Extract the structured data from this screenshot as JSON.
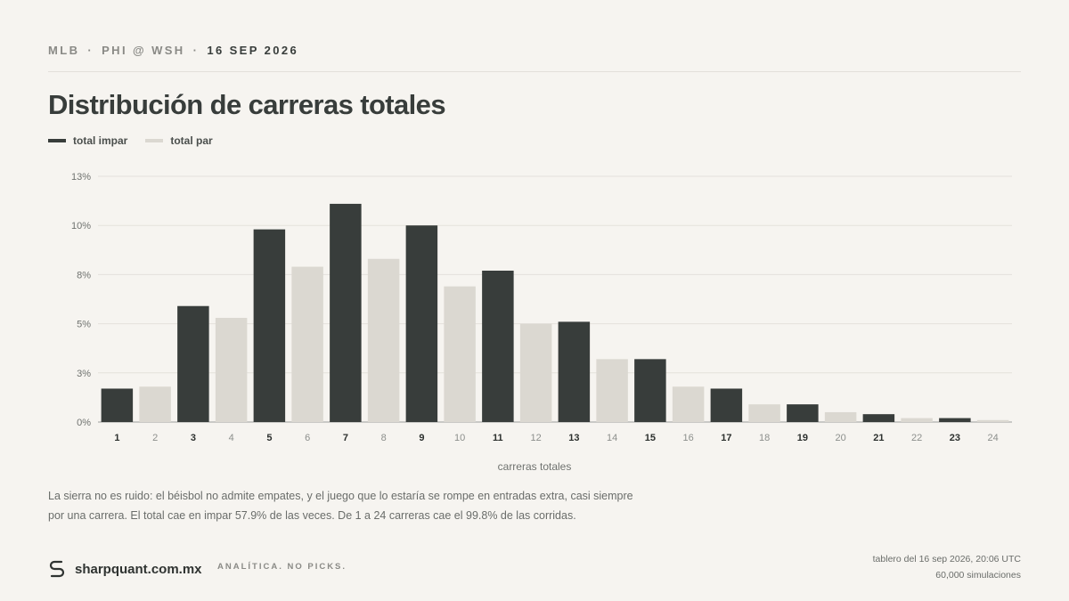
{
  "header": {
    "league": "MLB",
    "matchup": "PHI @ WSH",
    "date": "16 SEP 2026",
    "separator": "·",
    "title": "Distribución de carreras totales"
  },
  "legend": [
    {
      "label": "total impar",
      "color": "#383d3b"
    },
    {
      "label": "total par",
      "color": "#dbd8d1"
    }
  ],
  "chart_data": {
    "type": "bar",
    "xlabel": "carreras totales",
    "ylabel": "",
    "ylim": [
      0,
      12.5
    ],
    "yticks": [
      {
        "value": 0,
        "label": "0%"
      },
      {
        "value": 2.5,
        "label": "3%"
      },
      {
        "value": 5,
        "label": "5%"
      },
      {
        "value": 7.5,
        "label": "8%"
      },
      {
        "value": 10,
        "label": "10%"
      },
      {
        "value": 12.5,
        "label": "13%"
      }
    ],
    "categories": [
      "1",
      "2",
      "3",
      "4",
      "5",
      "6",
      "7",
      "8",
      "9",
      "10",
      "11",
      "12",
      "13",
      "14",
      "15",
      "16",
      "17",
      "18",
      "19",
      "20",
      "21",
      "22",
      "23",
      "24"
    ],
    "series": [
      {
        "name": "total impar",
        "color": "#383d3b"
      },
      {
        "name": "total par",
        "color": "#dbd8d1"
      }
    ],
    "values": [
      1.7,
      1.8,
      5.9,
      5.3,
      9.8,
      7.9,
      11.1,
      8.3,
      10.0,
      6.9,
      7.7,
      5.0,
      5.1,
      3.2,
      3.2,
      1.8,
      1.7,
      0.9,
      0.9,
      0.5,
      0.4,
      0.2,
      0.2,
      0.1
    ],
    "grid": true
  },
  "note": {
    "line1": "La sierra no es ruido: el béisbol no admite empates, y el juego que lo estaría se rompe en entradas extra, casi siempre",
    "line2": "por una carrera. El total cae en impar 57.9% de las veces. De 1 a 24 carreras cae el 99.8% de las corridas."
  },
  "footer": {
    "site": "sharpquant.com.mx",
    "tagline": "ANALÍTICA. NO PICKS.",
    "timestamp": "tablero del 16 sep 2026, 20:06 UTC",
    "simulations": "60,000 simulaciones",
    "logo_icon": "s-logo-icon"
  }
}
